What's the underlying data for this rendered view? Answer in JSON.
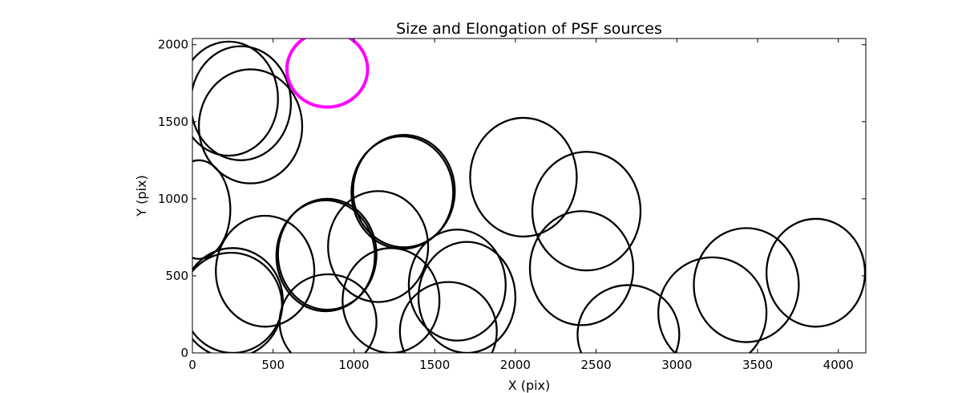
{
  "chart_data": {
    "type": "scatter",
    "title": "Size and Elongation of PSF sources",
    "xlabel": "X (pix)",
    "ylabel": "Y (pix)",
    "xlim": [
      0,
      4170
    ],
    "ylim": [
      0,
      2040
    ],
    "x_ticks": [
      0,
      500,
      1000,
      1500,
      2000,
      2500,
      3000,
      3500,
      4000
    ],
    "y_ticks": [
      0,
      500,
      1000,
      1500,
      2000
    ],
    "grid": false,
    "legend": "none",
    "colors": {
      "normal": "#000000",
      "highlight": "#ff00ff"
    },
    "sources": [
      {
        "x": 225,
        "y": 1650,
        "w": 610,
        "h": 740,
        "angle": 0
      },
      {
        "x": 300,
        "y": 1620,
        "w": 620,
        "h": 740,
        "angle": 0
      },
      {
        "x": 360,
        "y": 1470,
        "w": 640,
        "h": 740,
        "angle": 0
      },
      {
        "x": 40,
        "y": 930,
        "w": 390,
        "h": 640,
        "angle": 0
      },
      {
        "x": 450,
        "y": 530,
        "w": 610,
        "h": 720,
        "angle": 0
      },
      {
        "x": 250,
        "y": 340,
        "w": 620,
        "h": 680,
        "angle": 0
      },
      {
        "x": 240,
        "y": 310,
        "w": 630,
        "h": 680,
        "angle": 0
      },
      {
        "x": 825,
        "y": 630,
        "w": 610,
        "h": 720,
        "angle": 0
      },
      {
        "x": 835,
        "y": 640,
        "w": 610,
        "h": 720,
        "angle": 0
      },
      {
        "x": 840,
        "y": 200,
        "w": 600,
        "h": 620,
        "angle": 0
      },
      {
        "x": 1150,
        "y": 690,
        "w": 620,
        "h": 720,
        "angle": 0
      },
      {
        "x": 1300,
        "y": 1040,
        "w": 630,
        "h": 730,
        "angle": 0
      },
      {
        "x": 1310,
        "y": 1050,
        "w": 630,
        "h": 730,
        "angle": 0
      },
      {
        "x": 1230,
        "y": 340,
        "w": 600,
        "h": 680,
        "angle": 0
      },
      {
        "x": 1640,
        "y": 440,
        "w": 600,
        "h": 720,
        "angle": 0
      },
      {
        "x": 1700,
        "y": 360,
        "w": 600,
        "h": 720,
        "angle": 0
      },
      {
        "x": 1585,
        "y": 140,
        "w": 600,
        "h": 640,
        "angle": 0
      },
      {
        "x": 2050,
        "y": 1140,
        "w": 660,
        "h": 770,
        "angle": 0
      },
      {
        "x": 2440,
        "y": 920,
        "w": 670,
        "h": 770,
        "angle": 0
      },
      {
        "x": 2410,
        "y": 550,
        "w": 640,
        "h": 740,
        "angle": 0
      },
      {
        "x": 2700,
        "y": 120,
        "w": 630,
        "h": 640,
        "angle": 0
      },
      {
        "x": 3220,
        "y": 260,
        "w": 670,
        "h": 720,
        "angle": 0
      },
      {
        "x": 3430,
        "y": 440,
        "w": 650,
        "h": 740,
        "angle": 0
      },
      {
        "x": 3860,
        "y": 520,
        "w": 610,
        "h": 700,
        "angle": 0
      },
      {
        "x": 835,
        "y": 1840,
        "w": 500,
        "h": 490,
        "angle": 0,
        "highlight": true
      }
    ]
  }
}
